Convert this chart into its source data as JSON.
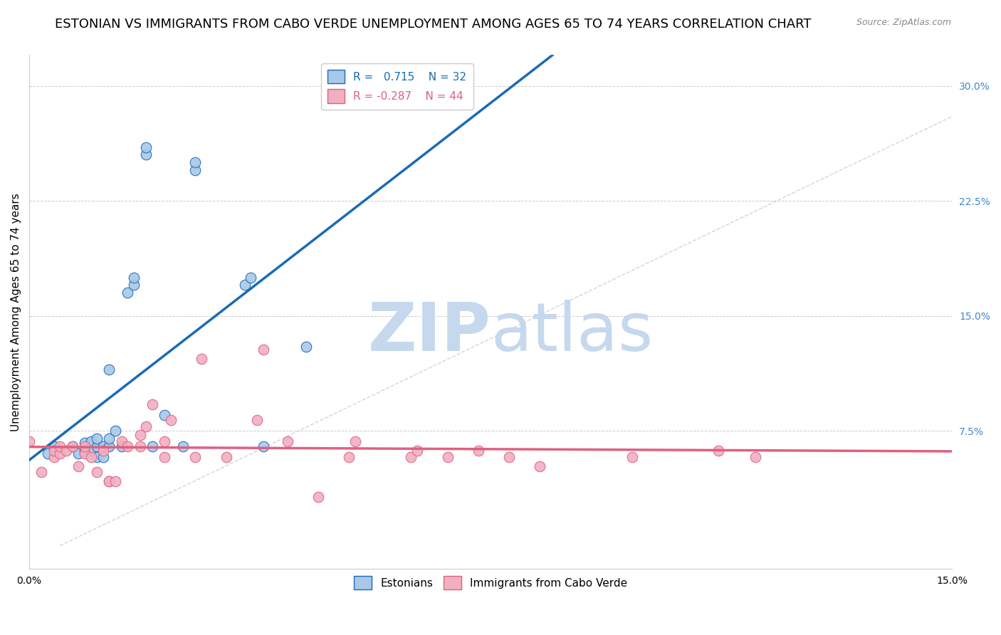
{
  "title": "ESTONIAN VS IMMIGRANTS FROM CABO VERDE UNEMPLOYMENT AMONG AGES 65 TO 74 YEARS CORRELATION CHART",
  "source": "Source: ZipAtlas.com",
  "ylabel": "Unemployment Among Ages 65 to 74 years",
  "xlim": [
    0.0,
    0.15
  ],
  "ylim": [
    -0.015,
    0.32
  ],
  "xticks": [
    0.0,
    0.05,
    0.1,
    0.15
  ],
  "xticklabels": [
    "0.0%",
    "",
    "",
    "15.0%"
  ],
  "yticks_right": [
    0.075,
    0.15,
    0.225,
    0.3
  ],
  "yticklabels_right": [
    "7.5%",
    "15.0%",
    "22.5%",
    "30.0%"
  ],
  "r_estonian": 0.715,
  "n_estonian": 32,
  "r_caboverde": -0.287,
  "n_caboverde": 44,
  "color_estonian": "#a8c8e8",
  "color_estonian_line": "#1a6bb5",
  "color_caboverde": "#f0b0c0",
  "color_caboverde_line": "#e06080",
  "watermark_zip": "ZIP",
  "watermark_atlas": "atlas",
  "watermark_color_zip": "#c8d8ee",
  "watermark_color_atlas": "#c8d8ee",
  "grid_color": "#cccccc",
  "background_color": "#ffffff",
  "title_fontsize": 13,
  "label_fontsize": 11,
  "tick_fontsize": 10,
  "legend_fontsize": 11,
  "estonian_x": [
    0.003,
    0.004,
    0.007,
    0.008,
    0.009,
    0.009,
    0.01,
    0.01,
    0.011,
    0.011,
    0.011,
    0.012,
    0.012,
    0.013,
    0.013,
    0.013,
    0.014,
    0.015,
    0.016,
    0.017,
    0.017,
    0.019,
    0.019,
    0.02,
    0.022,
    0.025,
    0.027,
    0.027,
    0.035,
    0.036,
    0.038,
    0.045
  ],
  "estonian_y": [
    0.06,
    0.065,
    0.065,
    0.06,
    0.062,
    0.067,
    0.062,
    0.068,
    0.058,
    0.065,
    0.07,
    0.058,
    0.065,
    0.065,
    0.115,
    0.07,
    0.075,
    0.065,
    0.165,
    0.17,
    0.175,
    0.255,
    0.26,
    0.065,
    0.085,
    0.065,
    0.245,
    0.25,
    0.17,
    0.175,
    0.065,
    0.13
  ],
  "caboverde_x": [
    0.0,
    0.002,
    0.004,
    0.004,
    0.005,
    0.005,
    0.006,
    0.007,
    0.008,
    0.009,
    0.009,
    0.01,
    0.011,
    0.012,
    0.013,
    0.013,
    0.014,
    0.015,
    0.016,
    0.018,
    0.018,
    0.019,
    0.02,
    0.022,
    0.022,
    0.023,
    0.027,
    0.028,
    0.032,
    0.037,
    0.038,
    0.042,
    0.047,
    0.052,
    0.053,
    0.062,
    0.063,
    0.068,
    0.073,
    0.078,
    0.083,
    0.098,
    0.112,
    0.118
  ],
  "caboverde_y": [
    0.068,
    0.048,
    0.058,
    0.062,
    0.06,
    0.065,
    0.062,
    0.065,
    0.052,
    0.06,
    0.065,
    0.058,
    0.048,
    0.062,
    0.042,
    0.042,
    0.042,
    0.068,
    0.065,
    0.065,
    0.072,
    0.078,
    0.092,
    0.058,
    0.068,
    0.082,
    0.058,
    0.122,
    0.058,
    0.082,
    0.128,
    0.068,
    0.032,
    0.058,
    0.068,
    0.058,
    0.062,
    0.058,
    0.062,
    0.058,
    0.052,
    0.058,
    0.062,
    0.058
  ]
}
